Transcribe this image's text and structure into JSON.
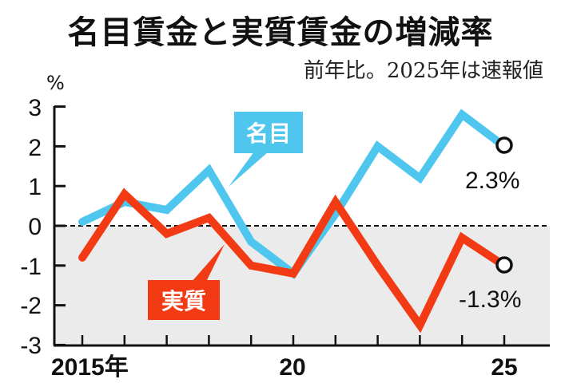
{
  "header": {
    "title": "名目賃金と実質賃金の増減率",
    "subtitle": "前年比。2025年は速報値",
    "unit": "%"
  },
  "colors": {
    "nominal": "#4fc6ee",
    "real": "#f23a14",
    "negative_band": "#ebebeb",
    "axis": "#111111"
  },
  "legend": {
    "nominal_label": "名目",
    "real_label": "実質"
  },
  "annotations": {
    "nominal_end": "2.3%",
    "real_end": "-1.3%"
  },
  "axis": {
    "y_ticks": [
      "3",
      "2",
      "1",
      "0",
      "-1",
      "-2",
      "-3"
    ],
    "x_labels": {
      "start": "2015年",
      "mid": "20",
      "end": "25"
    }
  },
  "chart_data": {
    "type": "line",
    "title": "名目賃金と実質賃金の増減率",
    "subtitle": "前年比。2025年は速報値",
    "xlabel": "",
    "ylabel": "%",
    "x": [
      2015,
      2016,
      2017,
      2018,
      2019,
      2020,
      2021,
      2022,
      2023,
      2024,
      2025
    ],
    "x_tick_labels": [
      "2015年",
      "",
      "",
      "",
      "",
      "20",
      "",
      "",
      "",
      "",
      "25"
    ],
    "ylim": [
      -3,
      3
    ],
    "y_ticks": [
      3,
      2,
      1,
      0,
      -1,
      -2,
      -3
    ],
    "grid": false,
    "zero_line": "dashed",
    "negative_region_shaded": true,
    "series": [
      {
        "name": "名目",
        "color": "#4fc6ee",
        "values": [
          0.1,
          0.6,
          0.4,
          1.4,
          -0.4,
          -1.2,
          0.3,
          2.0,
          1.2,
          2.8,
          2.3
        ]
      },
      {
        "name": "実質",
        "color": "#f23a14",
        "values": [
          -0.8,
          0.8,
          -0.2,
          0.2,
          -1.0,
          -1.2,
          0.6,
          -1.0,
          -2.5,
          -0.3,
          -1.3
        ]
      }
    ],
    "annotations": [
      {
        "series": "名目",
        "x": 2025,
        "text": "2.3%"
      },
      {
        "series": "実質",
        "x": 2025,
        "text": "-1.3%"
      }
    ],
    "legend_position": "inline callouts"
  }
}
